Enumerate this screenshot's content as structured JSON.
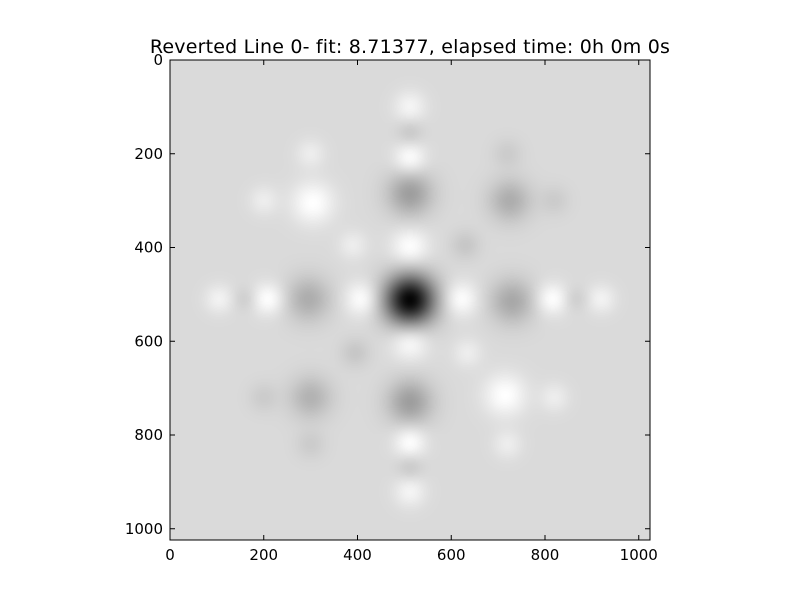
{
  "chart_data": {
    "type": "heatmap",
    "title": "Reverted Line 0- fit: 8.71377, elapsed time: 0h 0m 0s",
    "xlabel": "",
    "ylabel": "",
    "xlim": [
      0,
      1024
    ],
    "ylim": [
      1024,
      0
    ],
    "x_ticks": [
      0,
      200,
      400,
      600,
      800,
      1000
    ],
    "y_ticks": [
      0,
      200,
      400,
      600,
      800,
      1000
    ],
    "colormap": "gray",
    "background_level": 0.855,
    "blobs": [
      {
        "x": 512,
        "y": 512,
        "sigma": 38,
        "level": 0.02
      },
      {
        "x": 512,
        "y": 400,
        "sigma": 28,
        "level": 1.0
      },
      {
        "x": 512,
        "y": 600,
        "sigma": 28,
        "level": 1.0
      },
      {
        "x": 410,
        "y": 510,
        "sigma": 26,
        "level": 1.0
      },
      {
        "x": 620,
        "y": 510,
        "sigma": 26,
        "level": 1.0
      },
      {
        "x": 512,
        "y": 285,
        "sigma": 34,
        "level": 0.62
      },
      {
        "x": 512,
        "y": 730,
        "sigma": 34,
        "level": 0.62
      },
      {
        "x": 295,
        "y": 510,
        "sigma": 34,
        "level": 0.68
      },
      {
        "x": 730,
        "y": 515,
        "sigma": 34,
        "level": 0.66
      },
      {
        "x": 305,
        "y": 305,
        "sigma": 32,
        "level": 1.0
      },
      {
        "x": 715,
        "y": 715,
        "sigma": 32,
        "level": 1.0
      },
      {
        "x": 725,
        "y": 300,
        "sigma": 32,
        "level": 0.68
      },
      {
        "x": 300,
        "y": 720,
        "sigma": 32,
        "level": 0.7
      },
      {
        "x": 512,
        "y": 210,
        "sigma": 24,
        "level": 1.0
      },
      {
        "x": 512,
        "y": 815,
        "sigma": 24,
        "level": 1.0
      },
      {
        "x": 512,
        "y": 100,
        "sigma": 24,
        "level": 0.96
      },
      {
        "x": 512,
        "y": 920,
        "sigma": 24,
        "level": 0.96
      },
      {
        "x": 512,
        "y": 155,
        "sigma": 20,
        "level": 0.78
      },
      {
        "x": 512,
        "y": 870,
        "sigma": 20,
        "level": 0.78
      },
      {
        "x": 210,
        "y": 510,
        "sigma": 24,
        "level": 1.0
      },
      {
        "x": 815,
        "y": 510,
        "sigma": 24,
        "level": 1.0
      },
      {
        "x": 105,
        "y": 510,
        "sigma": 22,
        "level": 0.95
      },
      {
        "x": 920,
        "y": 510,
        "sigma": 22,
        "level": 0.95
      },
      {
        "x": 160,
        "y": 510,
        "sigma": 18,
        "level": 0.8
      },
      {
        "x": 865,
        "y": 510,
        "sigma": 18,
        "level": 0.8
      },
      {
        "x": 390,
        "y": 395,
        "sigma": 22,
        "level": 0.93
      },
      {
        "x": 635,
        "y": 625,
        "sigma": 22,
        "level": 0.93
      },
      {
        "x": 630,
        "y": 395,
        "sigma": 22,
        "level": 0.78
      },
      {
        "x": 395,
        "y": 625,
        "sigma": 22,
        "level": 0.78
      },
      {
        "x": 200,
        "y": 300,
        "sigma": 22,
        "level": 0.93
      },
      {
        "x": 820,
        "y": 720,
        "sigma": 22,
        "level": 0.93
      },
      {
        "x": 820,
        "y": 300,
        "sigma": 22,
        "level": 0.8
      },
      {
        "x": 200,
        "y": 720,
        "sigma": 22,
        "level": 0.8
      },
      {
        "x": 300,
        "y": 200,
        "sigma": 22,
        "level": 0.93
      },
      {
        "x": 720,
        "y": 820,
        "sigma": 22,
        "level": 0.93
      },
      {
        "x": 720,
        "y": 200,
        "sigma": 22,
        "level": 0.8
      },
      {
        "x": 300,
        "y": 820,
        "sigma": 22,
        "level": 0.8
      }
    ]
  }
}
